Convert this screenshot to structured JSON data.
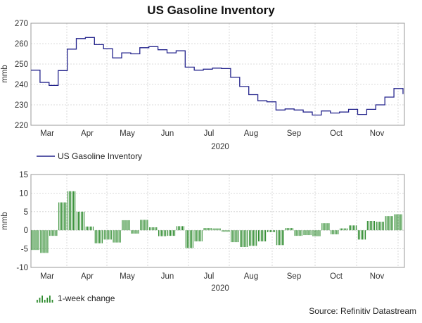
{
  "chart_data": [
    {
      "type": "line",
      "title": "US Gasoline Inventory",
      "ylabel": "mmb",
      "xlabel": "2020",
      "ylim": [
        220,
        270
      ],
      "yticks": [
        220,
        230,
        240,
        250,
        260,
        270
      ],
      "month_labels": [
        "Mar",
        "Apr",
        "May",
        "Jun",
        "Jul",
        "Aug",
        "Sep",
        "Oct",
        "Nov"
      ],
      "legend": "US Gasoline Inventory",
      "color": "#23238c",
      "series": [
        {
          "name": "US Gasoline Inventory",
          "week_start": [
            "Feb 14",
            "Feb 21",
            "Feb 28",
            "Mar 6",
            "Mar 13",
            "Mar 20",
            "Mar 27",
            "Apr 3",
            "Apr 10",
            "Apr 17",
            "Apr 24",
            "May 1",
            "May 8",
            "May 15",
            "May 22",
            "May 29",
            "Jun 5",
            "Jun 12",
            "Jun 19",
            "Jun 26",
            "Jul 3",
            "Jul 10",
            "Jul 17",
            "Jul 24",
            "Jul 31",
            "Aug 7",
            "Aug 14",
            "Aug 21",
            "Aug 28",
            "Sep 4",
            "Sep 11",
            "Sep 18",
            "Sep 25",
            "Oct 2",
            "Oct 9",
            "Oct 16",
            "Oct 23",
            "Oct 30",
            "Nov 6",
            "Nov 13",
            "Nov 20"
          ],
          "values": [
            247,
            241,
            239.5,
            246.8,
            257.3,
            262.5,
            263,
            259.5,
            257.5,
            253,
            255.5,
            255,
            258,
            258.5,
            257,
            255.5,
            256.5,
            248.5,
            247,
            247.5,
            248,
            247.8,
            243.5,
            239,
            235,
            232,
            231.5,
            227.5,
            228,
            227.5,
            226.5,
            225,
            227,
            226,
            226.5,
            227.8,
            225.3,
            227.8,
            230,
            233.8,
            238
          ]
        }
      ]
    },
    {
      "type": "bar",
      "ylabel": "mmb",
      "xlabel": "2020",
      "ylim": [
        -10,
        15
      ],
      "yticks": [
        -10,
        -5,
        0,
        5,
        10,
        15
      ],
      "month_labels": [
        "Mar",
        "Apr",
        "May",
        "Jun",
        "Jul",
        "Aug",
        "Sep",
        "Oct",
        "Nov"
      ],
      "legend": "1-week change",
      "color": "#2e8b2e",
      "series": [
        {
          "name": "1-week change",
          "values": [
            -5.3,
            -6.1,
            -1.5,
            7.5,
            10.5,
            5.0,
            1.0,
            -3.5,
            -2.5,
            -3.3,
            2.7,
            -0.9,
            2.8,
            0.8,
            -1.6,
            -1.5,
            1.1,
            -4.8,
            -3.0,
            0.6,
            0.5,
            -0.4,
            -3.2,
            -4.5,
            -4.2,
            -3.0,
            -0.5,
            -4.0,
            0.6,
            -1.5,
            -1.3,
            -1.6,
            1.9,
            -1.1,
            0.5,
            1.3,
            -2.5,
            2.5,
            2.3,
            3.8,
            4.3
          ]
        }
      ]
    }
  ],
  "source": "Source: Refinitiv Datastream"
}
